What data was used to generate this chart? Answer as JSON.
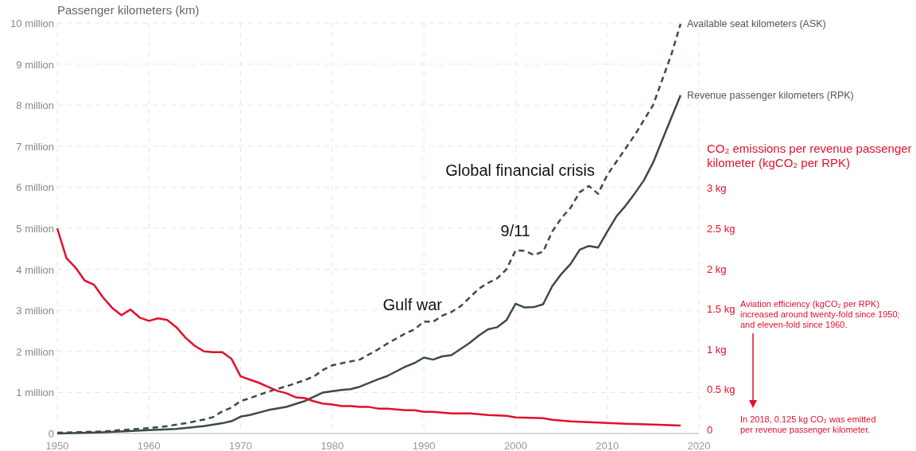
{
  "chart_data": {
    "type": "line",
    "ylabel": "Passenger kilometers (km)",
    "y2label": "CO₂ emissions per revenue passenger kilometer (kgCO₂ per RPK)",
    "xlim": [
      1950,
      2020
    ],
    "xticks": [
      1950,
      1960,
      1970,
      1980,
      1990,
      2000,
      2010,
      2020
    ],
    "ylim": [
      0,
      10
    ],
    "yticks": [
      0,
      {
        "value": 1,
        "label": "1 million"
      },
      {
        "value": 2,
        "label": "2 million"
      },
      {
        "value": 3,
        "label": "3 million"
      },
      {
        "value": 4,
        "label": "4 million"
      },
      {
        "value": 5,
        "label": "5 million"
      },
      {
        "value": 6,
        "label": "6 million"
      },
      {
        "value": 7,
        "label": "7 million"
      },
      {
        "value": 8,
        "label": "8 million"
      },
      {
        "value": 9,
        "label": "9 million"
      },
      {
        "value": 10,
        "label": "10 million"
      }
    ],
    "y2lim": [
      -0.05,
      5.05
    ],
    "y2ticks": [
      0,
      {
        "value": 0.5,
        "label": "0.5 kg"
      },
      {
        "value": 1,
        "label": "1 kg"
      },
      {
        "value": 1.5,
        "label": "1.5 kg"
      },
      {
        "value": 2,
        "label": "2 kg"
      },
      {
        "value": 2.5,
        "label": "2.5 kg"
      },
      {
        "value": 3,
        "label": "3 kg"
      }
    ],
    "grid": true,
    "legend": false,
    "series": [
      {
        "name": "Available seat kilometers (ASK)",
        "color": "#3d4a49",
        "line_style": "dashed",
        "x": [
          1950,
          1955,
          1958,
          1960,
          1962,
          1964,
          1966,
          1967,
          1968,
          1969,
          1970,
          1971,
          1973,
          1975,
          1977,
          1978,
          1979,
          1980,
          1981,
          1983,
          1985,
          1986,
          1988,
          1989,
          1990,
          1991,
          1992,
          1993,
          1994,
          1996,
          1997,
          1998,
          1999,
          2000,
          2001,
          2002,
          2003,
          2004,
          2005,
          2006,
          2007,
          2008,
          2009,
          2010,
          2013,
          2015,
          2017,
          2018
        ],
        "values": [
          0.02,
          0.05,
          0.1,
          0.13,
          0.18,
          0.25,
          0.34,
          0.4,
          0.54,
          0.63,
          0.79,
          0.86,
          1.02,
          1.15,
          1.3,
          1.39,
          1.55,
          1.66,
          1.71,
          1.8,
          2.05,
          2.19,
          2.44,
          2.54,
          2.73,
          2.72,
          2.87,
          2.96,
          3.1,
          3.53,
          3.67,
          3.78,
          4.0,
          4.46,
          4.45,
          4.35,
          4.43,
          4.92,
          5.25,
          5.5,
          5.88,
          6.03,
          5.84,
          6.3,
          7.27,
          8.0,
          9.24,
          9.98
        ]
      },
      {
        "name": "Revenue passenger kilometers (RPK)",
        "color": "#3d4a49",
        "line_style": "solid",
        "x": [
          1950,
          1955,
          1960,
          1963,
          1966,
          1968,
          1969,
          1970,
          1971,
          1973,
          1975,
          1977,
          1979,
          1981,
          1982,
          1983,
          1985,
          1986,
          1988,
          1989,
          1990,
          1991,
          1992,
          1993,
          1995,
          1996,
          1997,
          1998,
          1999,
          2000,
          2001,
          2002,
          2003,
          2004,
          2005,
          2006,
          2007,
          2008,
          2009,
          2010,
          2011,
          2012,
          2013,
          2014,
          2015,
          2016,
          2017,
          2018
        ],
        "values": [
          0,
          0.03,
          0.08,
          0.11,
          0.18,
          0.25,
          0.3,
          0.41,
          0.45,
          0.57,
          0.65,
          0.79,
          1.0,
          1.06,
          1.08,
          1.14,
          1.32,
          1.4,
          1.63,
          1.72,
          1.85,
          1.8,
          1.88,
          1.91,
          2.21,
          2.39,
          2.54,
          2.59,
          2.76,
          3.16,
          3.07,
          3.08,
          3.15,
          3.59,
          3.89,
          4.13,
          4.48,
          4.57,
          4.53,
          4.92,
          5.29,
          5.55,
          5.85,
          6.17,
          6.6,
          7.15,
          7.7,
          8.24
        ]
      },
      {
        "color": "#e0112b",
        "line_style": "solid",
        "axis": "y2",
        "x": [
          1950,
          1951,
          1952,
          1953,
          1954,
          1955,
          1956,
          1957,
          1958,
          1959,
          1960,
          1961,
          1962,
          1963,
          1964,
          1965,
          1966,
          1967,
          1968,
          1969,
          1970,
          1971,
          1972,
          1973,
          1974,
          1975,
          1976,
          1977,
          1978,
          1979,
          1980,
          1981,
          1982,
          1983,
          1984,
          1985,
          1986,
          1987,
          1988,
          1989,
          1990,
          1991,
          1992,
          1993,
          1995,
          1997,
          1999,
          2000,
          2003,
          2004,
          2006,
          2008,
          2010,
          2012,
          2015,
          2018
        ],
        "values": [
          2.5,
          2.13,
          2.01,
          1.85,
          1.8,
          1.64,
          1.51,
          1.42,
          1.49,
          1.39,
          1.35,
          1.38,
          1.36,
          1.27,
          1.14,
          1.04,
          0.97,
          0.96,
          0.96,
          0.88,
          0.66,
          0.62,
          0.58,
          0.53,
          0.48,
          0.45,
          0.4,
          0.39,
          0.35,
          0.32,
          0.31,
          0.29,
          0.29,
          0.28,
          0.28,
          0.26,
          0.26,
          0.25,
          0.24,
          0.24,
          0.22,
          0.22,
          0.21,
          0.2,
          0.2,
          0.18,
          0.17,
          0.15,
          0.14,
          0.12,
          0.1,
          0.09,
          0.08,
          0.07,
          0.06,
          0.05
        ]
      }
    ],
    "annotations": [
      "Gulf war",
      "9/11",
      "Global financial crisis",
      "Aviation efficiency (kgCO₂ per RPK) increased around twenty-fold since 1950; and eleven-fold since 1960.",
      "In 2018, 0.125 kg CO₂ was emitted per revenue passenger kilometer."
    ]
  }
}
